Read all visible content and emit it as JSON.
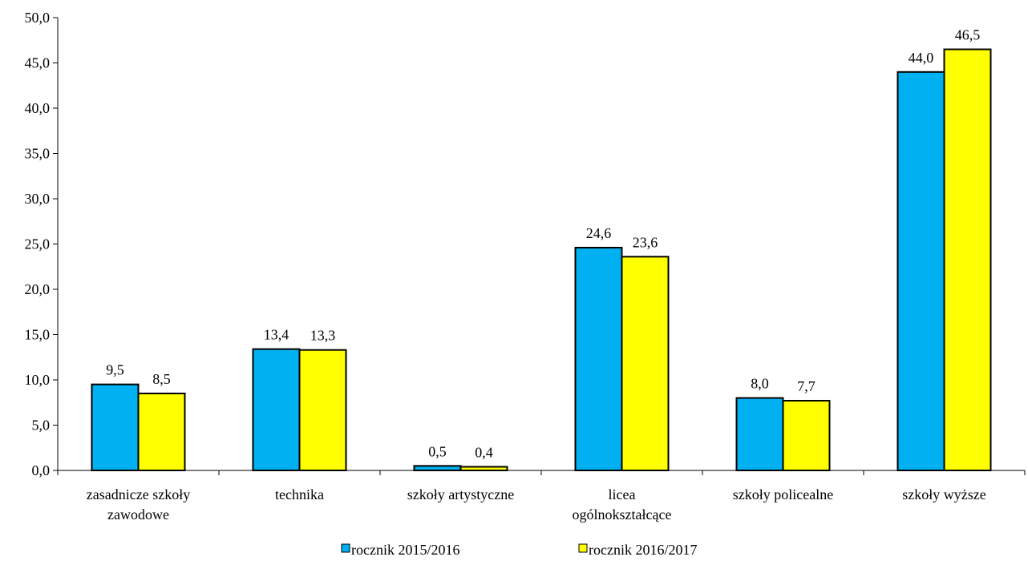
{
  "chart_data": {
    "type": "bar",
    "title": "",
    "xlabel": "",
    "ylabel": "",
    "ylim": [
      0,
      50
    ],
    "ytick_step": 5,
    "ytick_labels": [
      "0,0",
      "5,0",
      "10,0",
      "15,0",
      "20,0",
      "25,0",
      "30,0",
      "35,0",
      "40,0",
      "45,0",
      "50,0"
    ],
    "grid": false,
    "legend_position": "bottom",
    "categories": [
      [
        "zasadnicze szkoły",
        "zawodowe"
      ],
      [
        "technika"
      ],
      [
        "szkoły artystyczne"
      ],
      [
        "licea",
        "ogólnokształcące"
      ],
      [
        "szkoły policealne"
      ],
      [
        "szkoły wyższe"
      ]
    ],
    "series": [
      {
        "name": "rocznik 2015/2016",
        "color": "#00B0F0",
        "values": [
          9.5,
          13.4,
          0.5,
          24.6,
          8.0,
          44.0
        ],
        "labels": [
          "9,5",
          "13,4",
          "0,5",
          "24,6",
          "8,0",
          "44,0"
        ]
      },
      {
        "name": "rocznik 2016/2017",
        "color": "#FFFF00",
        "values": [
          8.5,
          13.3,
          0.4,
          23.6,
          7.7,
          46.5
        ],
        "labels": [
          "8,5",
          "13,3",
          "0,4",
          "23,6",
          "7,7",
          "46,5"
        ]
      }
    ]
  }
}
